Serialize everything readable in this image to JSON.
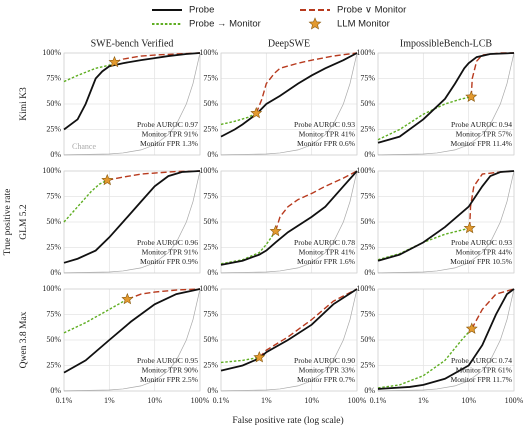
{
  "legend": [
    {
      "name": "Probe",
      "color": "#111111",
      "style": "solid"
    },
    {
      "name": "Probe ∨ Monitor",
      "color": "#b83a1e",
      "style": "dashed"
    },
    {
      "name": "Probe → Monitor",
      "color": "#5fae22",
      "style": "dotted"
    },
    {
      "name": "LLM Monitor",
      "color": "#e39a2f",
      "style": "star"
    }
  ],
  "xlabel": "False positive rate (log scale)",
  "ylabel": "True positive rate",
  "chance": {
    "label": "Chance",
    "color": "#aaaaaa",
    "x": [
      0.1,
      1,
      2,
      5,
      10,
      20,
      30,
      50,
      70,
      100
    ],
    "values": [
      0.1,
      1,
      2,
      5,
      10,
      20,
      30,
      50,
      70,
      100
    ]
  },
  "chart_data": [
    {
      "type": "line",
      "title": "SWE-bench Verified",
      "row_label": "Kimi K3",
      "xlim": [
        0.1,
        100
      ],
      "ylim": [
        0,
        100
      ],
      "log_x": true,
      "grid": true,
      "xticks": [
        0.1,
        1,
        10,
        100
      ],
      "yticks": [
        {
          "value": 0,
          "label": "0%"
        },
        {
          "value": 25,
          "label": "25%"
        },
        {
          "value": 50,
          "label": "50%"
        },
        {
          "value": 75,
          "label": "75%"
        },
        {
          "value": 100,
          "label": "100%"
        }
      ],
      "series": [
        {
          "color": "#111111",
          "style": "solid",
          "x": [
            0.1,
            0.2,
            0.3,
            0.5,
            0.7,
            1,
            2,
            5,
            10,
            20,
            50,
            100
          ],
          "values": [
            25,
            35,
            50,
            75,
            82,
            87,
            90,
            93,
            95,
            97,
            99,
            100
          ]
        },
        {
          "color": "#b83a1e",
          "style": "dashed",
          "x": [
            1.3,
            2,
            5,
            10,
            30,
            100
          ],
          "values": [
            91,
            94,
            97,
            98,
            99,
            100
          ]
        },
        {
          "color": "#5fae22",
          "style": "dotted",
          "x": [
            0.1,
            0.2,
            0.5,
            1,
            1.3
          ],
          "values": [
            72,
            78,
            85,
            88,
            91
          ]
        }
      ],
      "monitor": {
        "color": "#e39a2f",
        "x": [
          1.3
        ],
        "values": [
          91
        ]
      },
      "annotations": [
        "Probe AUROC 0.97",
        "Monitor TPR 91%",
        "Monitor FPR 1.3%"
      ]
    },
    {
      "type": "line",
      "title": "DeepSWE",
      "xlim": [
        0.1,
        100
      ],
      "ylim": [
        0,
        100
      ],
      "log_x": true,
      "grid": true,
      "xticks": [
        0.1,
        1,
        10,
        100
      ],
      "yticks": [
        {
          "value": 0,
          "label": "0%"
        },
        {
          "value": 25,
          "label": "25%"
        },
        {
          "value": 50,
          "label": "50%"
        },
        {
          "value": 75,
          "label": "75%"
        },
        {
          "value": 100,
          "label": "100%"
        }
      ],
      "series": [
        {
          "color": "#111111",
          "style": "solid",
          "x": [
            0.1,
            0.2,
            0.3,
            0.6,
            1,
            2,
            5,
            10,
            20,
            50,
            100
          ],
          "values": [
            18,
            25,
            30,
            40,
            50,
            58,
            70,
            78,
            85,
            93,
            100
          ]
        },
        {
          "color": "#b83a1e",
          "style": "dashed",
          "x": [
            0.6,
            0.8,
            1,
            1.5,
            2,
            5,
            10,
            30,
            100
          ],
          "values": [
            41,
            55,
            70,
            80,
            85,
            90,
            93,
            97,
            100
          ]
        },
        {
          "color": "#5fae22",
          "style": "dotted",
          "x": [
            0.1,
            0.2,
            0.4,
            0.6
          ],
          "values": [
            30,
            33,
            37,
            41
          ]
        }
      ],
      "monitor": {
        "color": "#e39a2f",
        "x": [
          0.6
        ],
        "values": [
          41
        ]
      },
      "annotations": [
        "Probe AUROC 0.93",
        "Monitor TPR 41%",
        "Monitor FPR 0.6%"
      ]
    },
    {
      "type": "line",
      "title": "ImpossibleBench-LCB",
      "xlim": [
        0.1,
        100
      ],
      "ylim": [
        0,
        100
      ],
      "log_x": true,
      "grid": true,
      "xticks": [
        0.1,
        1,
        10,
        100
      ],
      "yticks": [
        {
          "value": 0,
          "label": "0%"
        },
        {
          "value": 25,
          "label": "25%"
        },
        {
          "value": 50,
          "label": "50%"
        },
        {
          "value": 75,
          "label": "75%"
        },
        {
          "value": 100,
          "label": "100%"
        }
      ],
      "series": [
        {
          "color": "#111111",
          "style": "solid",
          "x": [
            0.1,
            0.3,
            1,
            3,
            5,
            8,
            10,
            15,
            30,
            100
          ],
          "values": [
            12,
            18,
            35,
            55,
            70,
            85,
            90,
            96,
            99,
            100
          ]
        },
        {
          "color": "#b83a1e",
          "style": "dashed",
          "x": [
            11.4,
            12,
            15,
            20,
            50,
            100
          ],
          "values": [
            57,
            75,
            92,
            98,
            100,
            100
          ]
        },
        {
          "color": "#5fae22",
          "style": "dotted",
          "x": [
            0.1,
            0.3,
            1,
            3,
            7,
            11.4
          ],
          "values": [
            15,
            25,
            40,
            50,
            55,
            57
          ]
        }
      ],
      "monitor": {
        "color": "#e39a2f",
        "x": [
          11.4
        ],
        "values": [
          57
        ]
      },
      "annotations": [
        "Probe AUROC 0.94",
        "Monitor TPR 57%",
        "Monitor FPR 11.4%"
      ]
    },
    {
      "type": "line",
      "row_label": "GLM 5.2",
      "xlim": [
        0.1,
        100
      ],
      "ylim": [
        0,
        100
      ],
      "log_x": true,
      "grid": true,
      "xticks": [
        0.1,
        1,
        10,
        100
      ],
      "yticks": [
        {
          "value": 0,
          "label": "0%"
        },
        {
          "value": 25,
          "label": "25%"
        },
        {
          "value": 50,
          "label": "50%"
        },
        {
          "value": 75,
          "label": "75%"
        },
        {
          "value": 100,
          "label": "100%"
        }
      ],
      "series": [
        {
          "color": "#111111",
          "style": "solid",
          "x": [
            0.1,
            0.2,
            0.5,
            1,
            2,
            5,
            10,
            20,
            40,
            100
          ],
          "values": [
            10,
            14,
            22,
            35,
            50,
            70,
            85,
            95,
            99,
            100
          ]
        },
        {
          "color": "#b83a1e",
          "style": "dashed",
          "x": [
            0.9,
            2,
            5,
            10,
            30,
            100
          ],
          "values": [
            91,
            94,
            97,
            98,
            99.5,
            100
          ]
        },
        {
          "color": "#5fae22",
          "style": "dotted",
          "x": [
            0.1,
            0.2,
            0.4,
            0.6,
            0.9
          ],
          "values": [
            50,
            65,
            80,
            87,
            91
          ]
        }
      ],
      "monitor": {
        "color": "#e39a2f",
        "x": [
          0.9
        ],
        "values": [
          91
        ]
      },
      "annotations": [
        "Probe AUROC 0.96",
        "Monitor TPR 91%",
        "Monitor FPR 0.9%"
      ]
    },
    {
      "type": "line",
      "xlim": [
        0.1,
        100
      ],
      "ylim": [
        0,
        100
      ],
      "log_x": true,
      "grid": true,
      "xticks": [
        0.1,
        1,
        10,
        100
      ],
      "yticks": [
        {
          "value": 0,
          "label": "0%"
        },
        {
          "value": 25,
          "label": "25%"
        },
        {
          "value": 50,
          "label": "50%"
        },
        {
          "value": 75,
          "label": "75%"
        },
        {
          "value": 100,
          "label": "100%"
        }
      ],
      "series": [
        {
          "color": "#111111",
          "style": "solid",
          "x": [
            0.1,
            0.3,
            0.7,
            1,
            1.6,
            3,
            10,
            20,
            50,
            100
          ],
          "values": [
            8,
            12,
            18,
            22,
            30,
            40,
            55,
            65,
            85,
            100
          ]
        },
        {
          "color": "#b83a1e",
          "style": "dashed",
          "x": [
            1.6,
            2,
            3,
            5,
            10,
            20,
            50,
            100
          ],
          "values": [
            41,
            55,
            65,
            72,
            78,
            85,
            93,
            100
          ]
        },
        {
          "color": "#5fae22",
          "style": "dotted",
          "x": [
            0.1,
            0.3,
            0.7,
            1,
            1.6
          ],
          "values": [
            9,
            13,
            20,
            28,
            41
          ]
        }
      ],
      "monitor": {
        "color": "#e39a2f",
        "x": [
          1.6
        ],
        "values": [
          41
        ]
      },
      "annotations": [
        "Probe AUROC 0.78",
        "Monitor TPR 41%",
        "Monitor FPR 1.6%"
      ]
    },
    {
      "type": "line",
      "xlim": [
        0.1,
        100
      ],
      "ylim": [
        0,
        100
      ],
      "log_x": true,
      "grid": true,
      "xticks": [
        0.1,
        1,
        10,
        100
      ],
      "yticks": [
        {
          "value": 0,
          "label": "0%"
        },
        {
          "value": 25,
          "label": "25%"
        },
        {
          "value": 50,
          "label": "50%"
        },
        {
          "value": 75,
          "label": "75%"
        },
        {
          "value": 100,
          "label": "100%"
        }
      ],
      "series": [
        {
          "color": "#111111",
          "style": "solid",
          "x": [
            0.1,
            0.3,
            1,
            3,
            10,
            20,
            30,
            50,
            100
          ],
          "values": [
            12,
            18,
            30,
            45,
            65,
            85,
            95,
            99,
            100
          ]
        },
        {
          "color": "#b83a1e",
          "style": "dashed",
          "x": [
            10.5,
            11,
            13,
            20,
            50,
            100
          ],
          "values": [
            44,
            65,
            85,
            97,
            99,
            100
          ]
        },
        {
          "color": "#5fae22",
          "style": "dotted",
          "x": [
            0.1,
            0.3,
            1,
            3,
            10.5
          ],
          "values": [
            13,
            19,
            30,
            38,
            44
          ]
        }
      ],
      "monitor": {
        "color": "#e39a2f",
        "x": [
          10.5
        ],
        "values": [
          44
        ]
      },
      "annotations": [
        "Probe AUROC 0.93",
        "Monitor TPR 44%",
        "Monitor FPR 10.5%"
      ]
    },
    {
      "type": "line",
      "row_label": "Qwen 3.8 Max",
      "xlim": [
        0.1,
        100
      ],
      "ylim": [
        0,
        100
      ],
      "log_x": true,
      "grid": true,
      "xticks": [
        {
          "value": 0.1,
          "label": "0.1%"
        },
        {
          "value": 1,
          "label": "1%"
        },
        {
          "value": 10,
          "label": "10%"
        },
        {
          "value": 100,
          "label": "100%"
        }
      ],
      "yticks": [
        {
          "value": 0,
          "label": "0%"
        },
        {
          "value": 25,
          "label": "25%"
        },
        {
          "value": 50,
          "label": "50%"
        },
        {
          "value": 75,
          "label": "75%"
        },
        {
          "value": 100,
          "label": "100%"
        }
      ],
      "series": [
        {
          "color": "#111111",
          "style": "solid",
          "x": [
            0.1,
            0.3,
            1,
            3,
            10,
            30,
            100
          ],
          "values": [
            18,
            30,
            50,
            68,
            85,
            95,
            100
          ]
        },
        {
          "color": "#b83a1e",
          "style": "dashed",
          "x": [
            2.5,
            5,
            10,
            30,
            100
          ],
          "values": [
            90,
            95,
            97,
            99,
            100
          ]
        },
        {
          "color": "#5fae22",
          "style": "dotted",
          "x": [
            0.1,
            0.3,
            1,
            2.5
          ],
          "values": [
            57,
            67,
            80,
            90
          ]
        }
      ],
      "monitor": {
        "color": "#e39a2f",
        "x": [
          2.5
        ],
        "values": [
          90
        ]
      },
      "annotations": [
        "Probe AUROC 0.95",
        "Monitor TPR 90%",
        "Monitor FPR 2.5%"
      ]
    },
    {
      "type": "line",
      "xlim": [
        0.1,
        100
      ],
      "ylim": [
        0,
        100
      ],
      "log_x": true,
      "grid": true,
      "xticks": [
        {
          "value": 0.1,
          "label": "0.1%"
        },
        {
          "value": 1,
          "label": "1%"
        },
        {
          "value": 10,
          "label": "10%"
        },
        {
          "value": 100,
          "label": "100%"
        }
      ],
      "yticks": [
        {
          "value": 0,
          "label": "0%"
        },
        {
          "value": 25,
          "label": "25%"
        },
        {
          "value": 50,
          "label": "50%"
        },
        {
          "value": 75,
          "label": "75%"
        },
        {
          "value": 100,
          "label": "100%"
        }
      ],
      "series": [
        {
          "color": "#111111",
          "style": "solid",
          "x": [
            0.1,
            0.3,
            0.7,
            1,
            3,
            10,
            30,
            100
          ],
          "values": [
            20,
            25,
            32,
            38,
            50,
            65,
            85,
            100
          ]
        },
        {
          "color": "#b83a1e",
          "style": "dashed",
          "x": [
            0.7,
            1,
            3,
            10,
            30,
            100
          ],
          "values": [
            33,
            40,
            53,
            70,
            88,
            100
          ]
        },
        {
          "color": "#5fae22",
          "style": "dotted",
          "x": [
            0.1,
            0.3,
            0.7
          ],
          "values": [
            28,
            30,
            33
          ]
        }
      ],
      "monitor": {
        "color": "#e39a2f",
        "x": [
          0.7
        ],
        "values": [
          33
        ]
      },
      "annotations": [
        "Probe AUROC 0.90",
        "Monitor TPR 33%",
        "Monitor FPR 0.7%"
      ]
    },
    {
      "type": "line",
      "xlim": [
        0.1,
        100
      ],
      "ylim": [
        0,
        100
      ],
      "log_x": true,
      "grid": true,
      "xticks": [
        {
          "value": 0.1,
          "label": "0.1%"
        },
        {
          "value": 1,
          "label": "1%"
        },
        {
          "value": 10,
          "label": "10%"
        },
        {
          "value": 100,
          "label": "100%"
        }
      ],
      "yticks": [
        {
          "value": 0,
          "label": "0%"
        },
        {
          "value": 25,
          "label": "25%"
        },
        {
          "value": 50,
          "label": "50%"
        },
        {
          "value": 75,
          "label": "75%"
        },
        {
          "value": 100,
          "label": "100%"
        }
      ],
      "series": [
        {
          "color": "#111111",
          "style": "solid",
          "x": [
            0.1,
            0.5,
            1,
            3,
            10,
            20,
            40,
            70,
            100
          ],
          "values": [
            2,
            4,
            6,
            12,
            25,
            45,
            75,
            95,
            100
          ]
        },
        {
          "color": "#b83a1e",
          "style": "dashed",
          "x": [
            11.7,
            20,
            40,
            100
          ],
          "values": [
            61,
            80,
            95,
            100
          ]
        },
        {
          "color": "#5fae22",
          "style": "dotted",
          "x": [
            0.1,
            0.3,
            1,
            3,
            7,
            11.7
          ],
          "values": [
            3,
            6,
            15,
            30,
            50,
            61
          ]
        }
      ],
      "monitor": {
        "color": "#e39a2f",
        "x": [
          11.7
        ],
        "values": [
          61
        ]
      },
      "annotations": [
        "Probe AUROC 0.74",
        "Monitor TPR 61%",
        "Monitor FPR 11.7%"
      ]
    }
  ]
}
